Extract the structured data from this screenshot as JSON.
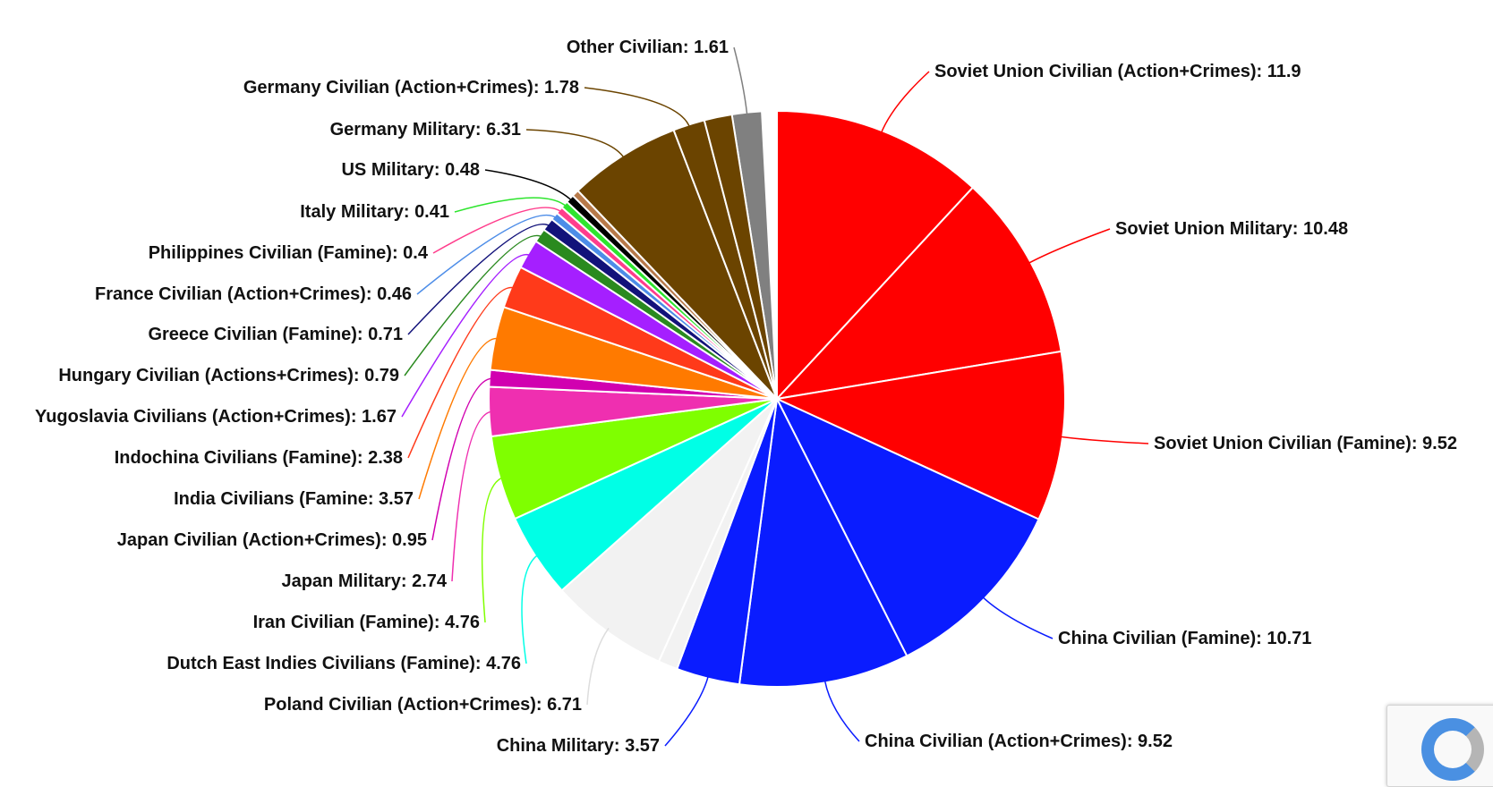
{
  "chart_data": {
    "type": "pie",
    "title": "",
    "slices": [
      {
        "label": "Soviet Union Civilian (Action+Crimes): 11.9",
        "value": 11.9,
        "color": "#ff0000"
      },
      {
        "label": "Soviet Union Military: 10.48",
        "value": 10.48,
        "color": "#ff0000"
      },
      {
        "label": "Soviet Union Civilian (Famine): 9.52",
        "value": 9.52,
        "color": "#ff0000"
      },
      {
        "label": "China Civilian (Famine): 10.71",
        "value": 10.71,
        "color": "#0a1cff"
      },
      {
        "label": "China Civilian (Action+Crimes): 9.52",
        "value": 9.52,
        "color": "#0a1cff"
      },
      {
        "label": "China Military: 3.57",
        "value": 3.57,
        "color": "#0a1cff"
      },
      {
        "label": "Poland Civilian (Action+Crimes): 6.71",
        "value": 6.71,
        "color": "#f2f2f2"
      },
      {
        "label": "Dutch East Indies Civilians (Famine): 4.76",
        "value": 4.76,
        "color": "#00ffe6"
      },
      {
        "label": "Iran Civilian (Famine): 4.76",
        "value": 4.76,
        "color": "#7fff00"
      },
      {
        "label": "Japan Military: 2.74",
        "value": 2.74,
        "color": "#ef2fb0"
      },
      {
        "label": "Japan Civilian (Action+Crimes): 0.95",
        "value": 0.95,
        "color": "#d100b0"
      },
      {
        "label": "India Civilians (Famine: 3.57",
        "value": 3.57,
        "color": "#ff7a00"
      },
      {
        "label": "Indochina Civilians (Famine): 2.38",
        "value": 2.38,
        "color": "#ff3a1a"
      },
      {
        "label": "Yugoslavia Civilians (Action+Crimes): 1.67",
        "value": 1.67,
        "color": "#a51fff"
      },
      {
        "label": "Hungary Civilian (Actions+Crimes): 0.79",
        "value": 0.79,
        "color": "#2a8a1f"
      },
      {
        "label": "Greece Civilian (Famine): 0.71",
        "value": 0.71,
        "color": "#12127a"
      },
      {
        "label": "France Civilian (Action+Crimes): 0.46",
        "value": 0.46,
        "color": "#4d8de8"
      },
      {
        "label": "Philippines Civilian (Famine): 0.4",
        "value": 0.4,
        "color": "#ff3d8c"
      },
      {
        "label": "Italy Military: 0.41",
        "value": 0.41,
        "color": "#2ee52e"
      },
      {
        "label": "US Military: 0.48",
        "value": 0.48,
        "color": "#000000"
      },
      {
        "label": "Germany Military: 6.31",
        "value": 6.31,
        "color": "#6b4400"
      },
      {
        "label": "Germany Civilian (Action+Crimes): 1.78",
        "value": 1.78,
        "color": "#6b4400"
      },
      {
        "label": "Other Civilian: 1.61",
        "value": 1.61,
        "color": "#808080"
      }
    ]
  },
  "recaptcha": {
    "icon": "recaptcha-logo-icon"
  }
}
